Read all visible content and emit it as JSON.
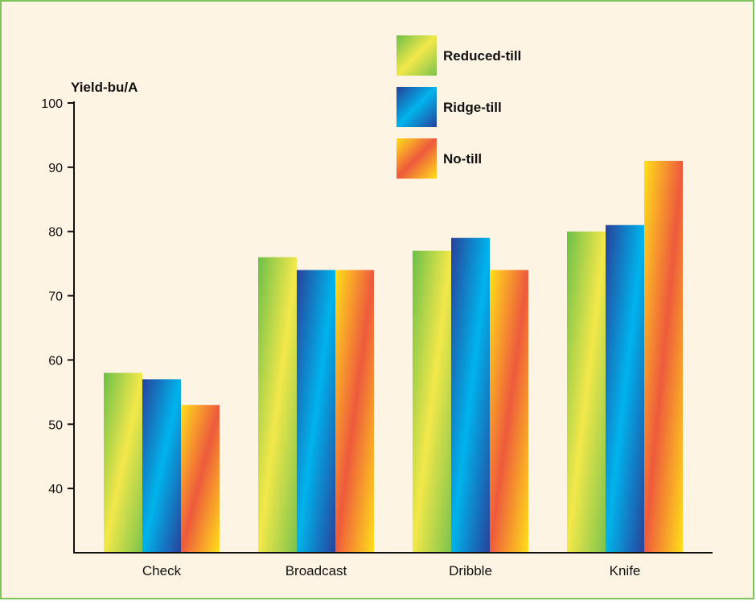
{
  "chart_data": {
    "type": "bar",
    "title": "",
    "xlabel": "",
    "ylabel": "Yield-bu/A",
    "categories": [
      "Check",
      "Broadcast",
      "Dribble",
      "Knife"
    ],
    "series": [
      {
        "name": "Reduced-till",
        "values": [
          58,
          76,
          77,
          80
        ]
      },
      {
        "name": "Ridge-till",
        "values": [
          57,
          74,
          79,
          81
        ]
      },
      {
        "name": "No-till",
        "values": [
          53,
          74,
          74,
          91
        ]
      }
    ],
    "ylim": [
      30,
      100
    ],
    "yticks": [
      40,
      50,
      60,
      70,
      80,
      90,
      100
    ],
    "grid": false,
    "legend_position": "top-center"
  },
  "colors": {
    "background": "#fdf4e3",
    "border": "#7cc35a",
    "reduced_till": [
      "#6cc04a",
      "#f3e84a",
      "#7cc34c"
    ],
    "ridge_till": [
      "#27419a",
      "#00b4ec",
      "#27419a"
    ],
    "no_till": [
      "#ffe01a",
      "#ee5a3c",
      "#ffe01a"
    ]
  }
}
